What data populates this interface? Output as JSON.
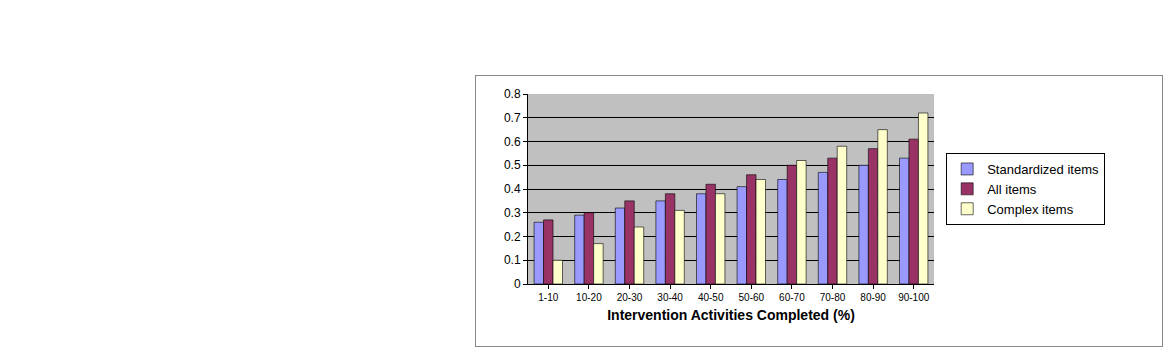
{
  "chart_data": {
    "type": "bar",
    "x_label": "Intervention Activities Completed (%)",
    "categories": [
      "1-10",
      "10-20",
      "20-30",
      "30-40",
      "40-50",
      "50-60",
      "60-70",
      "70-80",
      "80-90",
      "90-100"
    ],
    "series": [
      {
        "name": "Standardized items",
        "color": "#9999ff",
        "values": [
          0.26,
          0.29,
          0.32,
          0.35,
          0.38,
          0.41,
          0.44,
          0.47,
          0.5,
          0.53
        ]
      },
      {
        "name": "All items",
        "color": "#993366",
        "values": [
          0.27,
          0.3,
          0.35,
          0.38,
          0.42,
          0.46,
          0.5,
          0.53,
          0.57,
          0.61
        ]
      },
      {
        "name": "Complex items",
        "color": "#ffffcc",
        "values": [
          0.1,
          0.17,
          0.24,
          0.31,
          0.38,
          0.44,
          0.52,
          0.58,
          0.65,
          0.72
        ]
      }
    ],
    "ylim": [
      0,
      0.8
    ],
    "yticks": [
      0,
      0.1,
      0.2,
      0.3,
      0.4,
      0.5,
      0.6,
      0.7,
      0.8
    ],
    "grid": true,
    "legend": "right"
  }
}
